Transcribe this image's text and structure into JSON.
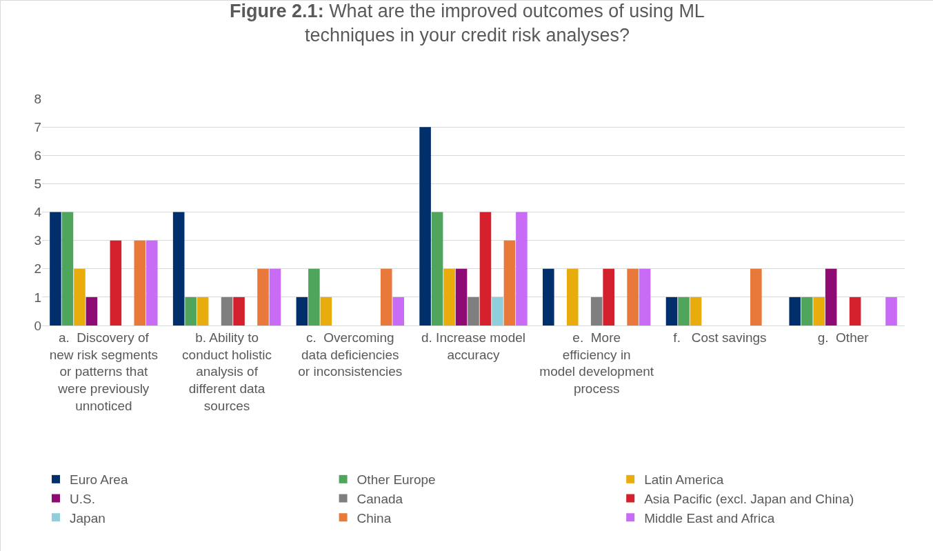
{
  "chart_data": {
    "type": "bar",
    "title": "Figure 2.1: What are the improved outcomes of using ML techniques in your credit risk analyses?",
    "categories": [
      "a.  Discovery of new risk segments or patterns that were previously unnoticed",
      "b. Ability to conduct holistic analysis of different data sources",
      "c.  Overcoming data deficiencies or inconsistencies",
      "d. Increase model accuracy",
      "e.  More efficiency in model development process",
      "f.   Cost savings",
      "g.  Other"
    ],
    "series": [
      {
        "name": "Euro Area",
        "color": "#002f6c",
        "values": [
          4,
          4,
          1,
          7,
          2,
          1,
          1
        ]
      },
      {
        "name": "Other Europe",
        "color": "#4ea55b",
        "values": [
          4,
          1,
          2,
          4,
          0,
          1,
          1
        ]
      },
      {
        "name": "Latin America",
        "color": "#e8ad0c",
        "values": [
          2,
          1,
          1,
          2,
          2,
          1,
          1
        ]
      },
      {
        "name": "U.S.",
        "color": "#8e0b73",
        "values": [
          1,
          0,
          0,
          2,
          0,
          0,
          2
        ]
      },
      {
        "name": "Canada",
        "color": "#7f7f7f",
        "values": [
          0,
          1,
          0,
          1,
          1,
          0,
          0
        ]
      },
      {
        "name": "Asia Pacific (excl. Japan and China)",
        "color": "#d4202c",
        "values": [
          3,
          1,
          0,
          4,
          2,
          0,
          1
        ]
      },
      {
        "name": "Japan",
        "color": "#8ecfdb",
        "values": [
          0,
          0,
          0,
          1,
          0,
          0,
          0
        ]
      },
      {
        "name": "China",
        "color": "#e8793a",
        "values": [
          3,
          2,
          2,
          3,
          2,
          2,
          0
        ]
      },
      {
        "name": "Middle East and Africa",
        "color": "#c86cf5",
        "values": [
          3,
          2,
          1,
          4,
          2,
          0,
          1
        ]
      }
    ],
    "ylim": [
      0,
      8
    ],
    "yticks": [
      0,
      1,
      2,
      3,
      4,
      5,
      6,
      7,
      8
    ],
    "grid": "y",
    "legend": "bottom"
  }
}
